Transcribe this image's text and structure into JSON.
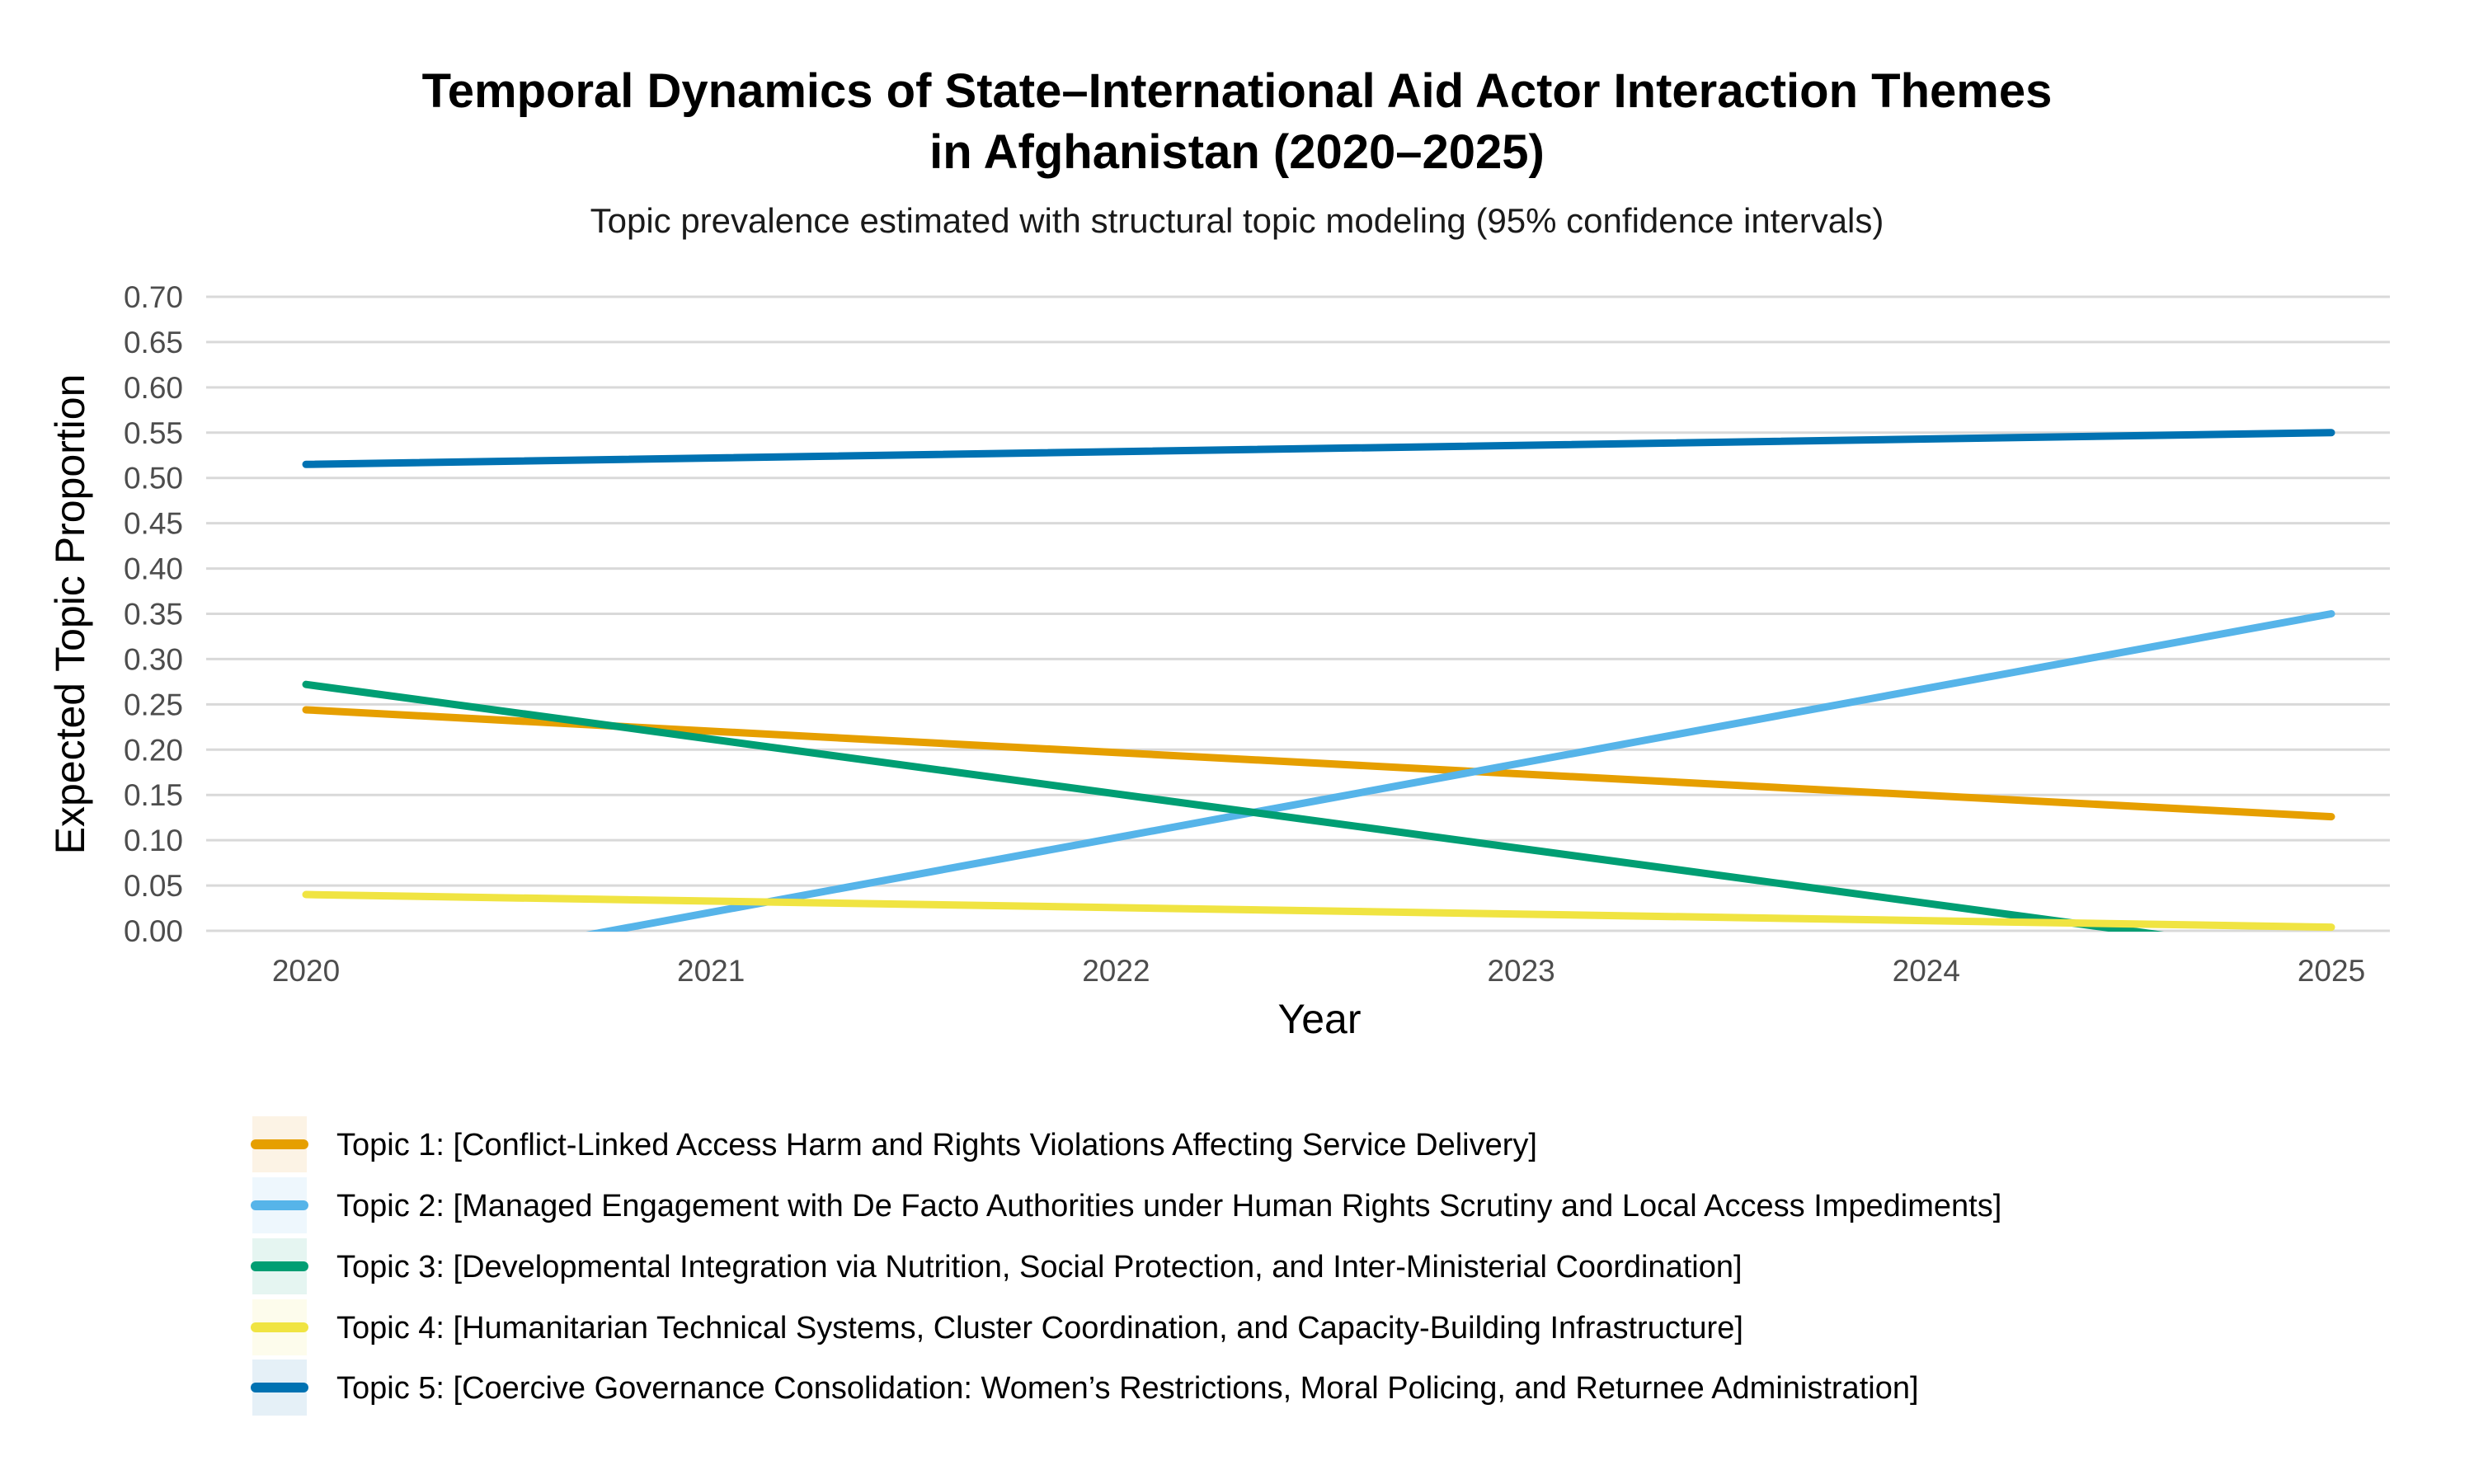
{
  "chart_data": {
    "type": "line",
    "title": [
      "Temporal Dynamics of State–International Aid Actor Interaction Themes",
      "in Afghanistan (2020–2025)"
    ],
    "subtitle": "Topic prevalence estimated with structural topic modeling (95% confidence intervals)",
    "xlabel": "Year",
    "ylabel": "Expected Topic Proportion",
    "x": [
      2020,
      2025
    ],
    "x_ticks": [
      "2020",
      "2021",
      "2022",
      "2023",
      "2024",
      "2025"
    ],
    "y_ticks": [
      "0.00",
      "0.05",
      "0.10",
      "0.15",
      "0.20",
      "0.25",
      "0.30",
      "0.35",
      "0.40",
      "0.45",
      "0.50",
      "0.55",
      "0.60",
      "0.65",
      "0.70"
    ],
    "xlim": [
      2019.75,
      2025.27
    ],
    "ylim": [
      0,
      0.7
    ],
    "grid": "horizontal",
    "legend_position": "bottom",
    "series": [
      {
        "name": "Topic 1: [Conflict-Linked Access Harm and Rights Violations Affecting Service Delivery]",
        "color": "#E69F00",
        "fill": "#FCF3E5",
        "values": [
          0.244,
          0.126
        ]
      },
      {
        "name": "Topic 2: [Managed Engagement with De Facto Authorities under Human Rights Scrutiny and Local Access Impediments]",
        "color": "#56B4E9",
        "fill": "#EEF7FD",
        "values": [
          -0.062,
          0.35
        ]
      },
      {
        "name": "Topic 3: [Developmental Integration via Nutrition, Social Protection, and Inter-Ministerial Coordination]",
        "color": "#009E73",
        "fill": "#E5F5F1",
        "values": [
          0.272,
          -0.03
        ]
      },
      {
        "name": "Topic 4: [Humanitarian Technical Systems, Cluster Coordination, and Capacity-Building Infrastructure]",
        "color": "#F0E442",
        "fill": "#FDFCEC",
        "values": [
          0.04,
          0.004
        ]
      },
      {
        "name": "Topic 5: [Coercive Governance Consolidation: Women’s Restrictions, Moral Policing, and Returnee Administration]",
        "color": "#0072B2",
        "fill": "#E5F0F7",
        "values": [
          0.515,
          0.55
        ]
      }
    ]
  }
}
